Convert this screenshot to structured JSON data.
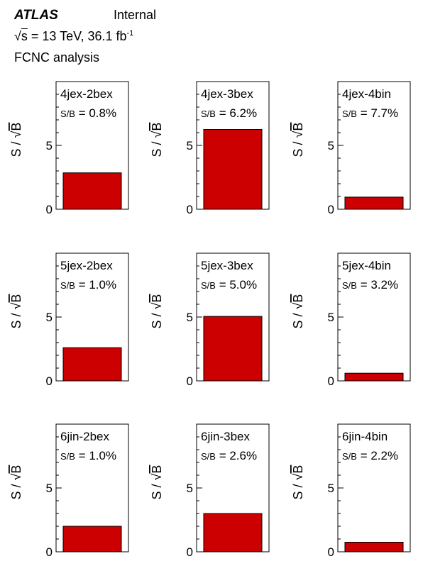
{
  "header": {
    "experiment": "ATLAS",
    "status": "Internal",
    "sqrt_symbol": "√",
    "s_label": "s",
    "energy": " = 13 TeV, 36.1 fb",
    "lumi_exp": "-1",
    "analysis": "FCNC analysis"
  },
  "chart_data": {
    "type": "bar",
    "ylabel_prefix": "S / ",
    "ylabel_sqrt": "√",
    "ylabel_b": "B",
    "ylim": [
      0,
      10
    ],
    "yticks": [
      "0",
      "5"
    ],
    "ytick_values": [
      0,
      5
    ],
    "bar_color": "#cc0000",
    "panels": [
      {
        "region": "4jex-2bex",
        "sb_prefix": "S/B",
        "sb_value": " = 0.8%",
        "value": 2.85
      },
      {
        "region": "4jex-3bex",
        "sb_prefix": "S/B",
        "sb_value": " = 6.2%",
        "value": 6.25
      },
      {
        "region": "4jex-4bin",
        "sb_prefix": "S/B",
        "sb_value": " = 7.7%",
        "value": 0.95
      },
      {
        "region": "5jex-2bex",
        "sb_prefix": "S/B",
        "sb_value": " = 1.0%",
        "value": 2.6
      },
      {
        "region": "5jex-3bex",
        "sb_prefix": "S/B",
        "sb_value": " = 5.0%",
        "value": 5.05
      },
      {
        "region": "5jex-4bin",
        "sb_prefix": "S/B",
        "sb_value": " = 3.2%",
        "value": 0.6
      },
      {
        "region": "6jin-2bex",
        "sb_prefix": "S/B",
        "sb_value": " = 1.0%",
        "value": 2.0
      },
      {
        "region": "6jin-3bex",
        "sb_prefix": "S/B",
        "sb_value": " = 2.6%",
        "value": 3.0
      },
      {
        "region": "6jin-4bin",
        "sb_prefix": "S/B",
        "sb_value": " = 2.2%",
        "value": 0.75
      }
    ]
  }
}
